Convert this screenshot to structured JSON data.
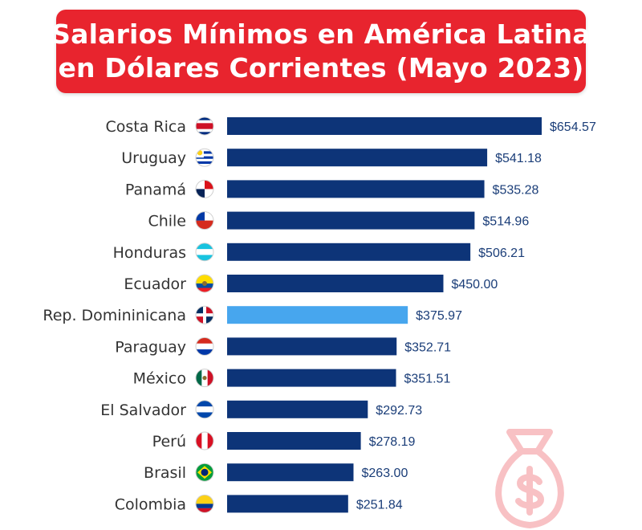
{
  "title_lines": [
    "Salarios Mínimos en América Latina",
    "en Dólares Corrientes (Mayo 2023)"
  ],
  "colors": {
    "title_bg": "#e8242e",
    "bar": "#0d3478",
    "highlight": "#47a6ee",
    "watermark": "#e8242e"
  },
  "watermark_icon": "money-bag-dollar-icon",
  "chart_data": {
    "type": "bar",
    "orientation": "horizontal",
    "title": "Salarios Mínimos en América Latina en Dólares Corrientes (Mayo 2023)",
    "categories": [
      "Costa Rica",
      "Uruguay",
      "Panamá",
      "Chile",
      "Honduras",
      "Ecuador",
      "Rep. Domininicana",
      "Paraguay",
      "México",
      "El Salvador",
      "Perú",
      "Brasil",
      "Colombia"
    ],
    "values": [
      654.57,
      541.18,
      535.28,
      514.96,
      506.21,
      450.0,
      375.97,
      352.71,
      351.51,
      292.73,
      278.19,
      263.0,
      251.84
    ],
    "value_labels": [
      "$654.57",
      "$541.18",
      "$535.28",
      "$514.96",
      "$506.21",
      "$450.00",
      "$375.97",
      "$352.71",
      "$351.51",
      "$292.73",
      "$278.19",
      "$263.00",
      "$251.84"
    ],
    "flags": [
      "costa-rica-flag-icon",
      "uruguay-flag-icon",
      "panama-flag-icon",
      "chile-flag-icon",
      "honduras-flag-icon",
      "ecuador-flag-icon",
      "dominican-republic-flag-icon",
      "paraguay-flag-icon",
      "mexico-flag-icon",
      "el-salvador-flag-icon",
      "peru-flag-icon",
      "brazil-flag-icon",
      "colombia-flag-icon"
    ],
    "highlight_category": "Rep. Domininicana",
    "xlim": [
      0,
      654.57
    ],
    "grid": false,
    "legend": "none"
  }
}
